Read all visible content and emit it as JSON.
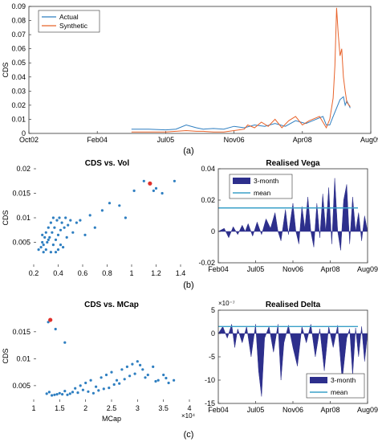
{
  "panel_labels": [
    "(a)",
    "(b)",
    "(c)"
  ],
  "chart_data": [
    {
      "type": "line",
      "ylabel": "CDS",
      "x_ticks": [
        "Oct02",
        "Feb04",
        "Jul05",
        "Nov06",
        "Apr08",
        "Aug09"
      ],
      "y_ticks": [
        "0",
        "0.01",
        "0.02",
        "0.03",
        "0.04",
        "0.05",
        "0.06",
        "0.07",
        "0.08",
        "0.09"
      ],
      "ylim": [
        0,
        0.09
      ],
      "xlim": [
        0,
        1000
      ],
      "legend_position": "top-left",
      "grid": false,
      "colors": {
        "Actual": "#2f7fc1",
        "Synthetic": "#e8632b"
      },
      "series": [
        {
          "name": "Actual",
          "x": [
            300,
            350,
            400,
            430,
            460,
            490,
            510,
            540,
            570,
            600,
            630,
            660,
            690,
            720,
            750,
            780,
            810,
            840,
            860,
            870,
            880,
            890,
            900,
            910,
            920,
            925,
            930,
            940
          ],
          "y": [
            0.003,
            0.003,
            0.0025,
            0.003,
            0.006,
            0.004,
            0.003,
            0.0035,
            0.003,
            0.005,
            0.004,
            0.006,
            0.005,
            0.007,
            0.005,
            0.009,
            0.007,
            0.01,
            0.012,
            0.006,
            0.006,
            0.012,
            0.018,
            0.024,
            0.026,
            0.02,
            0.023,
            0.018
          ]
        },
        {
          "name": "Synthetic",
          "x": [
            300,
            350,
            400,
            430,
            460,
            490,
            510,
            540,
            570,
            600,
            630,
            640,
            660,
            680,
            700,
            720,
            740,
            760,
            780,
            800,
            820,
            840,
            850,
            860,
            870,
            880,
            890,
            895,
            900,
            905,
            910,
            915,
            920,
            925,
            930,
            940
          ],
          "y": [
            0.001,
            0.001,
            0.001,
            0.0015,
            0.002,
            0.0015,
            0.0015,
            0.001,
            0.001,
            0.002,
            0.003,
            0.006,
            0.004,
            0.008,
            0.005,
            0.01,
            0.004,
            0.009,
            0.012,
            0.006,
            0.009,
            0.011,
            0.012,
            0.008,
            0.004,
            0.01,
            0.025,
            0.048,
            0.089,
            0.07,
            0.055,
            0.06,
            0.04,
            0.03,
            0.022,
            0.019
          ]
        }
      ]
    },
    {
      "type": "scatter",
      "title": "CDS vs. Vol",
      "ylabel": "CDS",
      "x_ticks": [
        "0.2",
        "0.4",
        "0.6",
        "0.8",
        "1",
        "1.2",
        "1.4"
      ],
      "y_ticks": [
        "0.005",
        "0.01",
        "0.015",
        "0.02"
      ],
      "xlim": [
        0.2,
        1.4
      ],
      "ylim": [
        0.002,
        0.02
      ],
      "grid": false,
      "point_color": "#2f7fc1",
      "highlight_color": "#e0302b",
      "highlight": {
        "x": 1.15,
        "y": 0.017
      },
      "points": {
        "x": [
          0.24,
          0.26,
          0.27,
          0.28,
          0.29,
          0.3,
          0.3,
          0.31,
          0.32,
          0.33,
          0.34,
          0.35,
          0.36,
          0.37,
          0.38,
          0.39,
          0.4,
          0.41,
          0.42,
          0.43,
          0.45,
          0.46,
          0.48,
          0.5,
          0.52,
          0.55,
          0.58,
          0.62,
          0.66,
          0.7,
          0.76,
          0.82,
          0.9,
          0.95,
          1.02,
          1.1,
          1.18,
          1.2,
          1.25,
          1.35,
          0.28,
          0.34,
          0.4,
          0.44,
          0.36,
          0.32,
          0.38,
          0.42,
          0.27,
          0.47
        ],
        "y": [
          0.0035,
          0.004,
          0.005,
          0.0045,
          0.006,
          0.0035,
          0.007,
          0.005,
          0.008,
          0.006,
          0.009,
          0.007,
          0.01,
          0.008,
          0.0055,
          0.0095,
          0.0065,
          0.01,
          0.0075,
          0.009,
          0.008,
          0.01,
          0.0085,
          0.0095,
          0.007,
          0.009,
          0.0095,
          0.0065,
          0.0105,
          0.008,
          0.0115,
          0.013,
          0.0125,
          0.01,
          0.0155,
          0.0175,
          0.0155,
          0.016,
          0.015,
          0.0175,
          0.003,
          0.003,
          0.0035,
          0.004,
          0.0045,
          0.0055,
          0.003,
          0.0045,
          0.0065,
          0.006
        ]
      }
    },
    {
      "type": "area",
      "title": "Realised Vega",
      "x_ticks": [
        "Feb04",
        "Jul05",
        "Nov06",
        "Apr08",
        "Aug09"
      ],
      "y_ticks": [
        "-0.02",
        "0",
        "0.02",
        "0.04"
      ],
      "xlim": [
        0,
        1000
      ],
      "ylim": [
        -0.02,
        0.04
      ],
      "legend_position": "top-left",
      "grid": false,
      "colors": {
        "3-month": "#2d2f8c",
        "mean": "#3aa0c8"
      },
      "series": [
        {
          "name": "3-month",
          "x": [
            0,
            40,
            70,
            100,
            130,
            160,
            180,
            200,
            230,
            260,
            290,
            320,
            350,
            380,
            400,
            420,
            450,
            470,
            500,
            520,
            540,
            560,
            580,
            600,
            620,
            640,
            660,
            680,
            700,
            720,
            740,
            760,
            780,
            800,
            820,
            840,
            860,
            880,
            900,
            920,
            940,
            960,
            980,
            1000
          ],
          "y": [
            0,
            0.002,
            -0.004,
            0.003,
            -0.002,
            0.004,
            0,
            0.005,
            -0.003,
            0.006,
            -0.002,
            0.008,
            0.002,
            0.012,
            0,
            -0.006,
            0.014,
            -0.002,
            0.018,
            0,
            -0.008,
            0.016,
            0.002,
            0.022,
            0,
            -0.01,
            0.018,
            -0.004,
            0.024,
            0,
            0.028,
            -0.008,
            0.034,
            0,
            -0.012,
            0.02,
            0.03,
            -0.008,
            0.022,
            0,
            0.012,
            -0.006,
            0.01,
            0
          ]
        },
        {
          "name": "mean",
          "x": [
            0,
            1000
          ],
          "y": [
            0.015,
            0.015
          ]
        }
      ]
    },
    {
      "type": "scatter",
      "title": "CDS vs. MCap",
      "xlabel": "MCap",
      "ylabel": "CDS",
      "x_exponent": "×10⁴",
      "x_ticks": [
        "1",
        "1.5",
        "2",
        "2.5",
        "3",
        "3.5",
        "4"
      ],
      "y_ticks": [
        "0.005",
        "0.01",
        "0.015"
      ],
      "xlim": [
        1,
        4
      ],
      "ylim": [
        0.002,
        0.019
      ],
      "grid": false,
      "point_color": "#2f7fc1",
      "highlight_color": "#e0302b",
      "highlight": {
        "x": 1.32,
        "y": 0.0172
      },
      "points": {
        "x": [
          1.25,
          1.3,
          1.4,
          1.5,
          1.6,
          1.7,
          1.8,
          1.9,
          2.0,
          2.1,
          2.2,
          2.3,
          2.4,
          2.5,
          2.6,
          2.7,
          2.8,
          2.9,
          3.0,
          3.1,
          3.2,
          3.3,
          3.4,
          3.5,
          3.6,
          3.7,
          1.35,
          1.55,
          1.75,
          1.95,
          2.15,
          2.35,
          2.55,
          2.75,
          2.95,
          3.15,
          3.35,
          3.55,
          1.45,
          1.65,
          1.85,
          2.05,
          2.25,
          2.45,
          2.65,
          2.85,
          3.05,
          1.28,
          1.42,
          1.6
        ],
        "y": [
          0.0035,
          0.0038,
          0.0033,
          0.0036,
          0.004,
          0.0035,
          0.0045,
          0.005,
          0.0055,
          0.006,
          0.0048,
          0.0065,
          0.007,
          0.0075,
          0.006,
          0.008,
          0.0085,
          0.009,
          0.0095,
          0.008,
          0.007,
          0.0085,
          0.006,
          0.007,
          0.0055,
          0.006,
          0.0032,
          0.0034,
          0.0038,
          0.0042,
          0.0036,
          0.0044,
          0.0052,
          0.0062,
          0.0072,
          0.0065,
          0.0058,
          0.0064,
          0.0034,
          0.0033,
          0.0037,
          0.0039,
          0.0041,
          0.0046,
          0.0054,
          0.0068,
          0.0088,
          0.0168,
          0.0155,
          0.013
        ]
      }
    },
    {
      "type": "area",
      "title": "Realised Delta",
      "y_exponent": "×10⁻⁷",
      "x_ticks": [
        "Feb04",
        "Jul05",
        "Nov06",
        "Apr08",
        "Aug09"
      ],
      "y_ticks": [
        "-15",
        "-10",
        "-5",
        "0",
        "5"
      ],
      "xlim": [
        0,
        1000
      ],
      "ylim": [
        -15,
        5
      ],
      "legend_position": "bottom-right",
      "grid": false,
      "colors": {
        "3-month": "#2d2f8c",
        "mean": "#3aa0c8"
      },
      "series": [
        {
          "name": "3-month",
          "x": [
            0,
            30,
            60,
            90,
            110,
            130,
            160,
            190,
            220,
            250,
            270,
            290,
            310,
            340,
            370,
            400,
            420,
            440,
            470,
            500,
            530,
            560,
            590,
            620,
            650,
            680,
            710,
            740,
            770,
            800,
            830,
            860,
            880,
            900,
            920,
            940,
            960,
            980,
            1000
          ],
          "y": [
            0,
            1.5,
            -1,
            2,
            -3,
            1,
            -2,
            1.5,
            -5,
            2,
            -8,
            -13.5,
            -1,
            1.5,
            -4,
            2,
            -10,
            -2,
            1.8,
            -3,
            -7,
            1.5,
            -2,
            2,
            -5,
            1,
            -8,
            1.5,
            -3,
            1.8,
            -10,
            -1,
            1,
            -9,
            1.2,
            -5,
            1.5,
            -6,
            0
          ]
        },
        {
          "name": "mean",
          "x": [
            0,
            1000
          ],
          "y": [
            1.5,
            1.5
          ]
        }
      ]
    }
  ]
}
